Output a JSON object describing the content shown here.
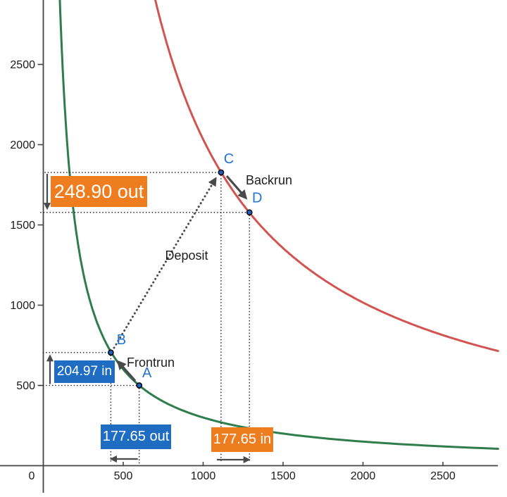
{
  "chart_data": {
    "type": "line",
    "title": "",
    "xlabel": "",
    "ylabel": "",
    "xlim": [
      0,
      2845
    ],
    "ylim": [
      0,
      2900
    ],
    "grid": false,
    "legend": "none",
    "x_ticks": [
      0,
      500,
      1000,
      1500,
      2000,
      2500
    ],
    "y_ticks": [
      500,
      1000,
      1500,
      2000,
      2500
    ],
    "curves": [
      {
        "name": "constant-product-curve-before-deposit",
        "relation": "x*y=k",
        "k": 300000,
        "color": "#2e7d4c"
      },
      {
        "name": "constant-product-curve-after-deposit",
        "relation": "x*y=k",
        "k": 2033000,
        "color": "#d25450"
      }
    ],
    "points": [
      {
        "label": "A",
        "x": 600,
        "y": 500
      },
      {
        "label": "B",
        "x": 422.35,
        "y": 704.97
      },
      {
        "label": "C",
        "x": 1112,
        "y": 1827
      },
      {
        "label": "D",
        "x": 1289.65,
        "y": 1578.1
      }
    ],
    "point_style": {
      "fill": "#1e5fc2",
      "stroke": "#000000"
    },
    "point_label_color": "#2173d4",
    "flows": [
      {
        "label": "Frontrun",
        "from": "A",
        "to": "B",
        "line": "solid"
      },
      {
        "label": "Deposit",
        "from": "B",
        "to": "C",
        "line": "dotted"
      },
      {
        "label": "Backrun",
        "from": "C",
        "to": "D",
        "line": "solid"
      }
    ],
    "measurements": [
      {
        "label": "248.90 out",
        "axis": "y",
        "between": [
          "C",
          "D"
        ],
        "arrow_direction": "down",
        "box_color": "#ee7d1f",
        "text_color": "#ffffff"
      },
      {
        "label": "204.97 in",
        "axis": "y",
        "between": [
          "A",
          "B"
        ],
        "arrow_direction": "up",
        "box_color": "#1e6dc3",
        "text_color": "#ffffff"
      },
      {
        "label": "177.65 out",
        "axis": "x",
        "between": [
          "A",
          "B"
        ],
        "arrow_direction": "left",
        "box_color": "#1e6dc3",
        "text_color": "#ffffff"
      },
      {
        "label": "177.65 in",
        "axis": "x",
        "between": [
          "C",
          "D"
        ],
        "arrow_direction": "right",
        "box_color": "#ee7d1f",
        "text_color": "#ffffff"
      }
    ],
    "colors": {
      "axis": "#444444",
      "tick_label": "#1a1a1a",
      "guide_dots": "#1f1f1f",
      "flow_arrow": "#4a4a4a",
      "measure_arrow": "#4a4a4a"
    }
  }
}
